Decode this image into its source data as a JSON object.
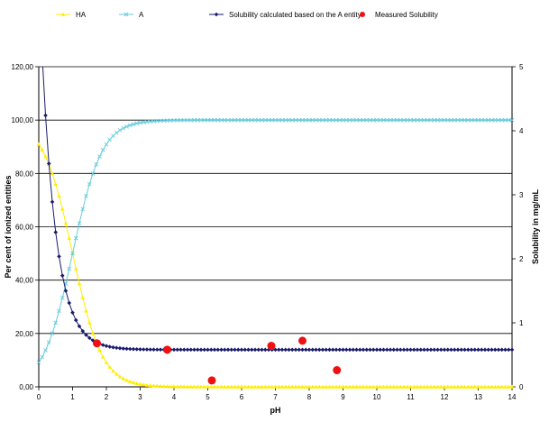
{
  "chart_data": {
    "type": "line",
    "title": "",
    "xlabel": "pH",
    "ylabel": "Per cent of ionized entities",
    "y2label": "Solubility in mg/mL",
    "xlim": [
      0,
      14
    ],
    "ylim": [
      0,
      120
    ],
    "y2lim": [
      0,
      5
    ],
    "xticks": [
      "0",
      "1",
      "2",
      "3",
      "4",
      "5",
      "6",
      "7",
      "8",
      "9",
      "10",
      "11",
      "12",
      "13",
      "14"
    ],
    "yticks": [
      "0,00",
      "20,00",
      "40,00",
      "60,00",
      "80,00",
      "100,00",
      "120,00"
    ],
    "y2ticks": [
      "0",
      "1",
      "2",
      "3",
      "4",
      "5"
    ],
    "grid": "horizontal",
    "legend_position": "top",
    "pKa": 1.0,
    "x_step": 0.1,
    "series": [
      {
        "name": "HA",
        "axis": "left",
        "color": "#ffee00",
        "marker": "triangle",
        "model": "100/(1+10^(pH-pKa))"
      },
      {
        "name": "A",
        "axis": "left",
        "color": "#66ccdd",
        "marker": "x",
        "model": "100/(1+10^(pKa-pH))"
      },
      {
        "name": "Solubility calculated based on the A entity",
        "axis": "right",
        "color": "#1a1a6e",
        "marker": "diamond",
        "intrinsic_solubility": 0.58,
        "model": "S0*(1+10^(pKa-pH))"
      },
      {
        "name": "Measured Solubility",
        "axis": "right",
        "color": "#ee1111",
        "marker": "circle",
        "points": [
          {
            "x": 1.72,
            "y": 0.68
          },
          {
            "x": 3.8,
            "y": 0.58
          },
          {
            "x": 5.12,
            "y": 0.1
          },
          {
            "x": 6.88,
            "y": 0.64
          },
          {
            "x": 7.8,
            "y": 0.72
          },
          {
            "x": 8.82,
            "y": 0.26
          }
        ]
      }
    ]
  }
}
